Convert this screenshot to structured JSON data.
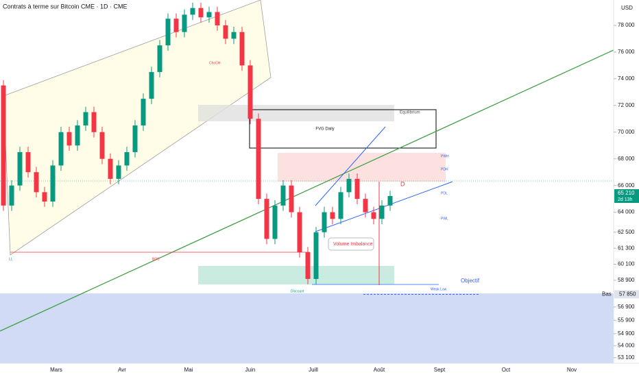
{
  "chart_data": {
    "type": "candlestick",
    "title": "Contrats à terme sur Bitcoin CME · 1D · CME",
    "currency": "USD",
    "up_color": "#089981",
    "down_color": "#f23645",
    "months": [
      "Mars",
      "Avr",
      "Mai",
      "Juin",
      "Juill",
      "Août",
      "Sept",
      "Oct",
      "Nov"
    ],
    "open": [
      73500,
      64500,
      66000,
      68500,
      67000,
      65500,
      64800,
      67500,
      70000,
      69000,
      70500,
      71500,
      70000,
      68000,
      66500,
      67500,
      68500,
      70500,
      72500,
      74500,
      76500,
      78500,
      77500,
      78800,
      79300,
      78600,
      79000,
      78000,
      77000,
      77500,
      75000,
      71000,
      65000,
      62000,
      64500,
      66000,
      64000,
      61000,
      59000,
      62500,
      64000,
      63500,
      65500,
      66500,
      65000,
      64000,
      63500,
      64500
    ],
    "high": [
      73900,
      66400,
      68900,
      68900,
      67400,
      65900,
      67900,
      70400,
      70400,
      70900,
      71900,
      71900,
      70400,
      68400,
      67900,
      68900,
      70900,
      72900,
      74900,
      76900,
      78900,
      78900,
      79200,
      79700,
      79700,
      79400,
      79400,
      78400,
      77900,
      77900,
      75400,
      71400,
      65400,
      64900,
      66400,
      66400,
      64400,
      61400,
      62900,
      64400,
      64400,
      65900,
      66900,
      66900,
      65400,
      64400,
      64900,
      65610
    ],
    "low": [
      64100,
      64100,
      65600,
      66600,
      65100,
      64400,
      64400,
      67100,
      68600,
      68600,
      70100,
      69600,
      67600,
      66100,
      66100,
      67100,
      68100,
      70100,
      72100,
      74100,
      76100,
      77100,
      77100,
      78400,
      78200,
      78200,
      77600,
      76600,
      76600,
      74600,
      70600,
      64600,
      61600,
      61600,
      64100,
      63600,
      60600,
      58600,
      58600,
      62100,
      63100,
      63100,
      65100,
      64600,
      63600,
      63100,
      63100,
      64100
    ],
    "close": [
      64500,
      66000,
      68500,
      67000,
      65500,
      64800,
      67500,
      70000,
      69000,
      70500,
      71500,
      70000,
      68000,
      66500,
      67500,
      68500,
      70500,
      72500,
      74500,
      76500,
      78500,
      77500,
      78800,
      79300,
      78600,
      79000,
      78000,
      77000,
      77500,
      75000,
      71000,
      65000,
      62000,
      64500,
      66000,
      64000,
      61000,
      59000,
      62500,
      64000,
      63500,
      65500,
      66500,
      65000,
      64000,
      63500,
      64500,
      65210
    ],
    "ylim": [
      52680,
      79900
    ],
    "yticks": [
      {
        "value": 78000,
        "label": "78 000"
      },
      {
        "value": 76000,
        "label": "76 000"
      },
      {
        "value": 74000,
        "label": "74 000"
      },
      {
        "value": 72000,
        "label": "72 000"
      },
      {
        "value": 70000,
        "label": "70 000"
      },
      {
        "value": 68000,
        "label": "68 000"
      },
      {
        "value": 66000,
        "label": "66 000"
      },
      {
        "value": 64000,
        "label": "64 000"
      },
      {
        "value": 62500,
        "label": "62 500"
      },
      {
        "value": 61300,
        "label": "61 300"
      },
      {
        "value": 60100,
        "label": "60 100"
      },
      {
        "value": 58900,
        "label": "58 900"
      },
      {
        "value": 56900,
        "label": "56 900"
      },
      {
        "value": 55900,
        "label": "55 900"
      },
      {
        "value": 54900,
        "label": "54 900"
      },
      {
        "value": 54000,
        "label": "54 000"
      },
      {
        "value": 53100,
        "label": "53 100"
      }
    ],
    "last_price": {
      "value": 65210,
      "label": "65 210",
      "countdown": "2d 13h"
    },
    "low_marker": {
      "value": 57850,
      "label": "57 850",
      "tag": "Bas"
    },
    "annotations": {
      "fvg": "FVG Daily",
      "equilibrium": "Equilibrium",
      "volume_imbalance": "Volume Imbalance",
      "objectif": "Objectif",
      "discount": "Discount",
      "ll": "LL",
      "d": "D",
      "bos": "BOS",
      "choch": "ChoCH",
      "pwh": "PWH",
      "pdh": "PDH",
      "pdl": "PDL",
      "pwl": "PWL",
      "weak_low": "Weak Low"
    }
  }
}
